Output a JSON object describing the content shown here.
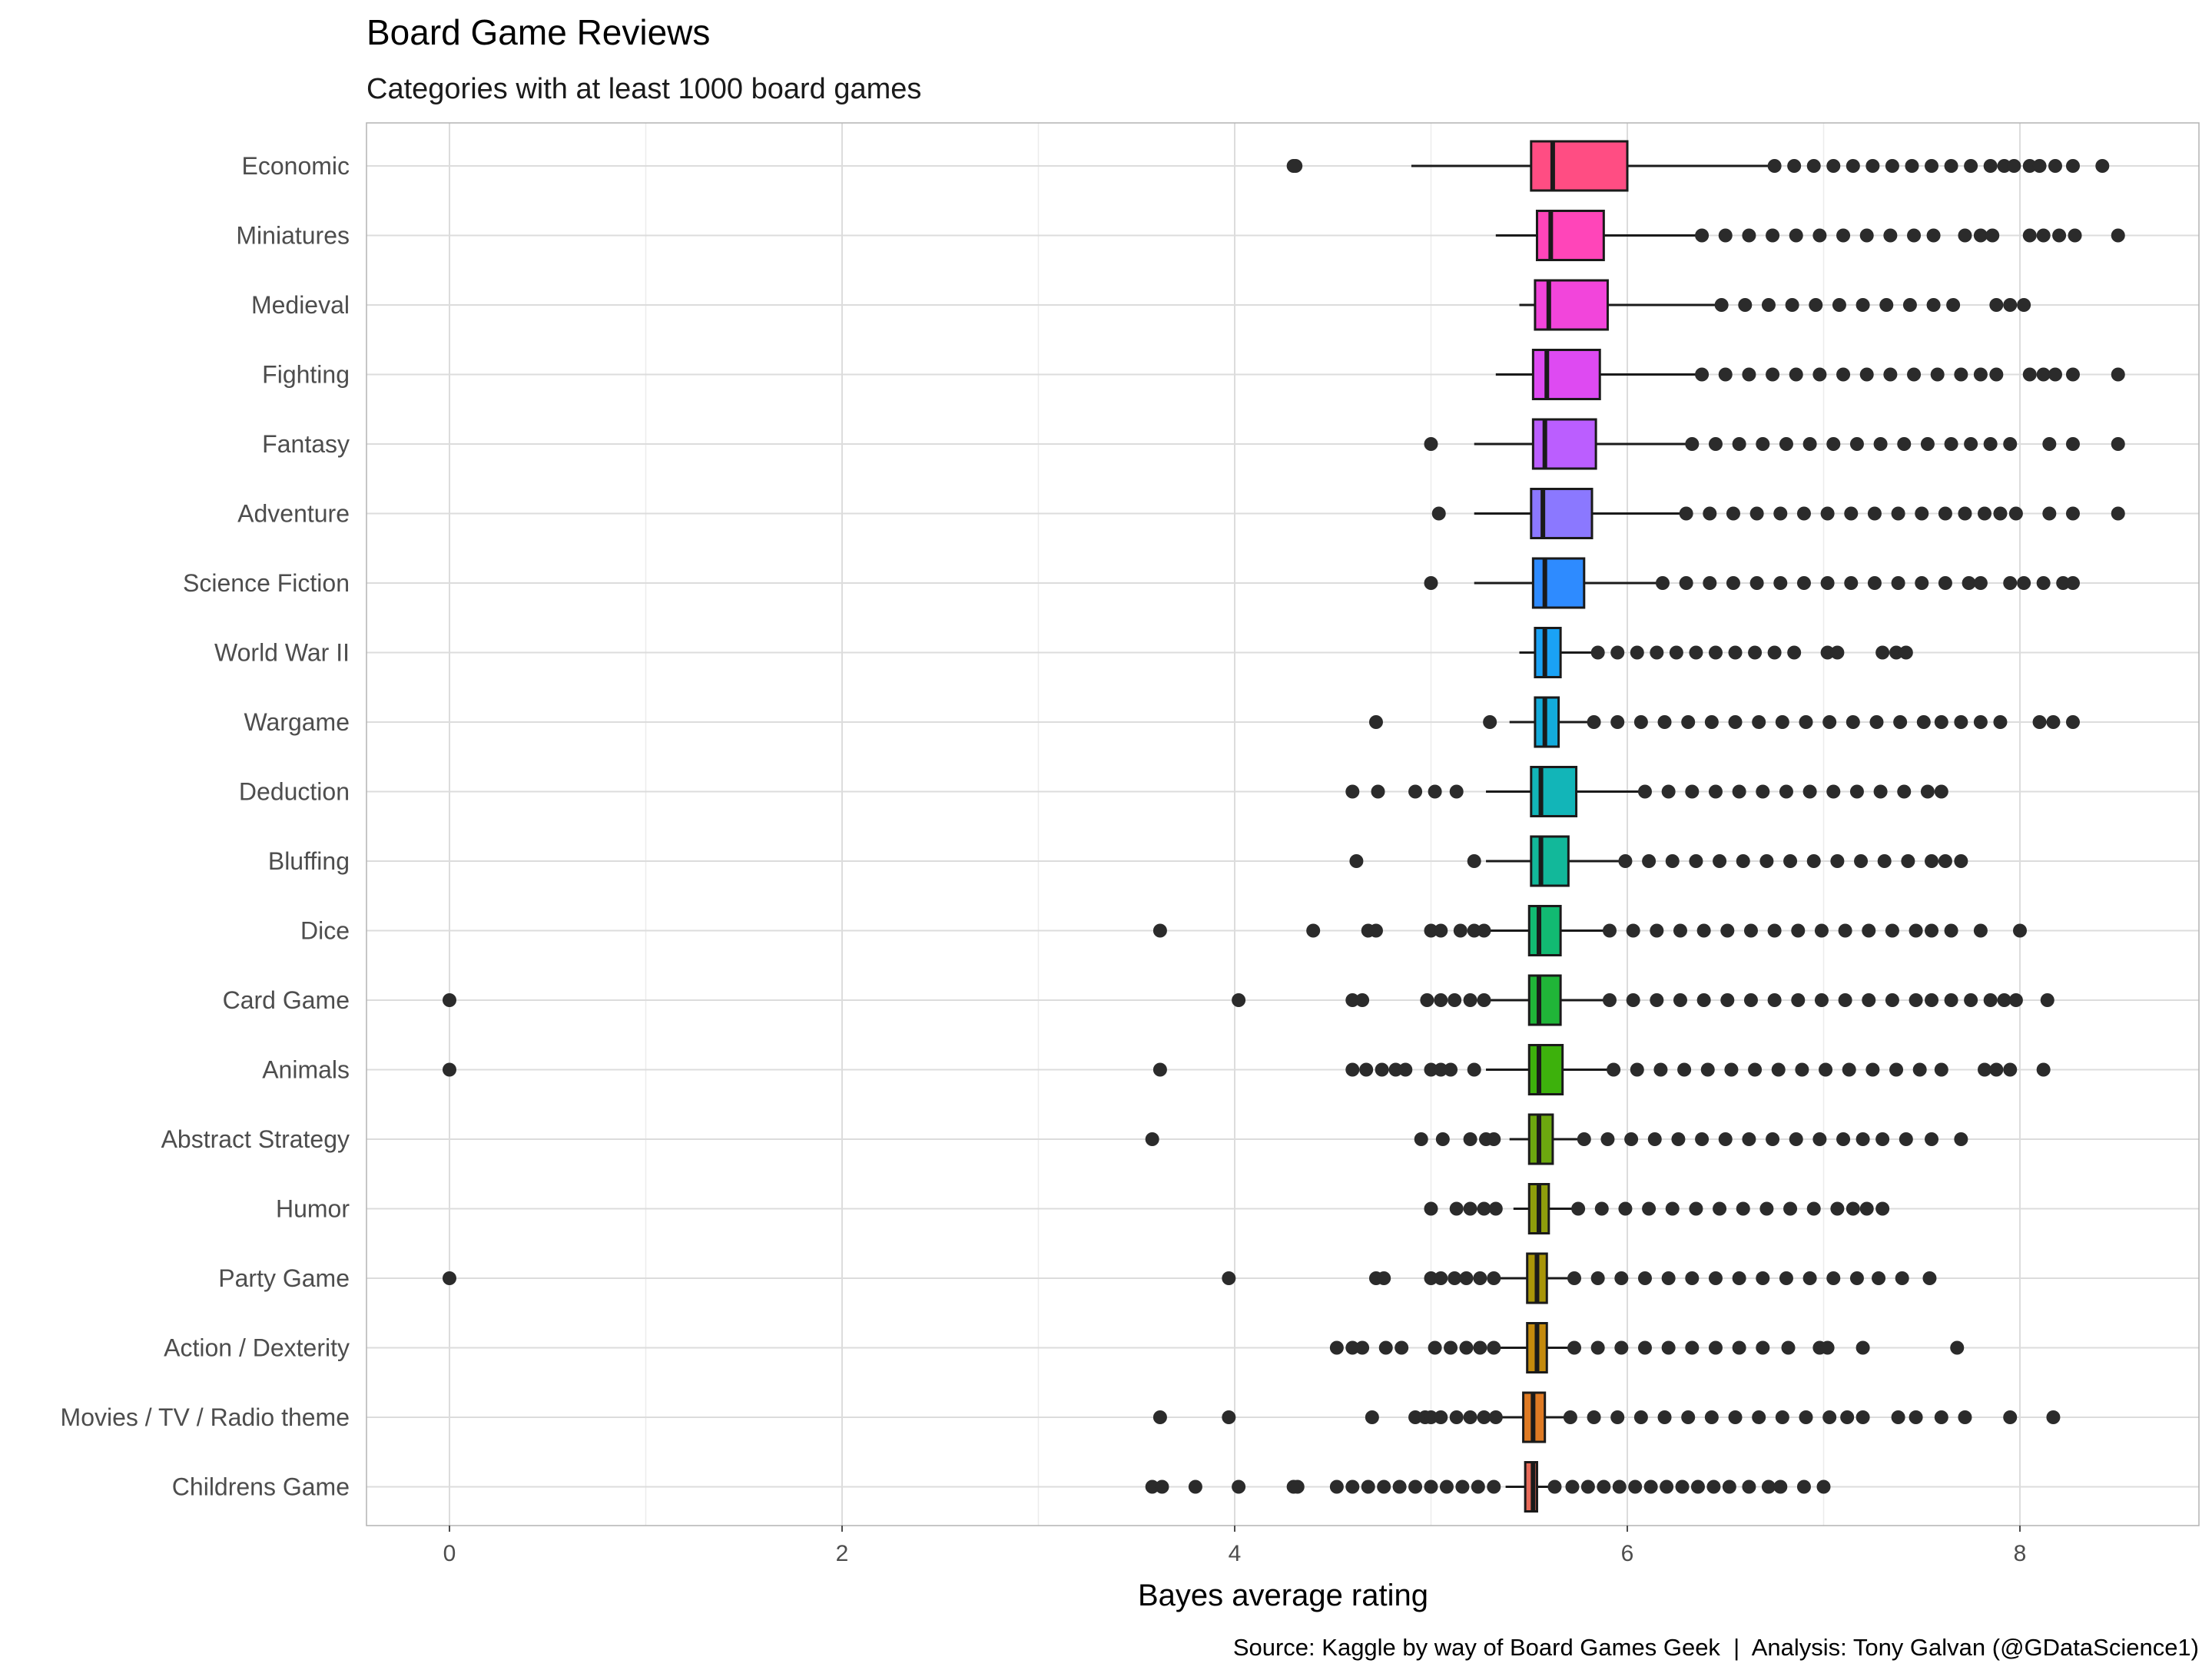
{
  "chart_data": {
    "type": "boxplot",
    "title": "Board Game Reviews",
    "subtitle": "Categories with at least 1000 board games",
    "xlabel": "Bayes average rating",
    "caption": "Source: Kaggle by way of Board Games Geek  |  Analysis: Tony Galvan (@GDataScience1)",
    "xlim": [
      -0.42,
      8.9
    ],
    "xticks": [
      0,
      2,
      4,
      6,
      8
    ],
    "grid": true,
    "categories": [
      {
        "name": "Economic",
        "color": "#FF4D83",
        "q1": 5.51,
        "median": 5.62,
        "q3": 6.0,
        "wlo": 4.9,
        "whi": 6.72,
        "outliers": [
          4.3,
          4.31,
          6.75,
          6.85,
          6.95,
          7.05,
          7.15,
          7.25,
          7.35,
          7.45,
          7.55,
          7.65,
          7.75,
          7.85,
          7.92,
          7.97,
          8.05,
          8.1,
          8.18,
          8.27,
          8.42
        ]
      },
      {
        "name": "Miniatures",
        "color": "#FF45B9",
        "q1": 5.54,
        "median": 5.61,
        "q3": 5.88,
        "wlo": 5.33,
        "whi": 6.35,
        "outliers": [
          6.38,
          6.5,
          6.62,
          6.74,
          6.86,
          6.98,
          7.1,
          7.22,
          7.34,
          7.46,
          7.56,
          7.72,
          7.8,
          7.86,
          8.05,
          8.12,
          8.2,
          8.28,
          8.5
        ]
      },
      {
        "name": "Medieval",
        "color": "#F245DB",
        "q1": 5.53,
        "median": 5.6,
        "q3": 5.9,
        "wlo": 5.45,
        "whi": 6.45,
        "outliers": [
          6.48,
          6.6,
          6.72,
          6.84,
          6.96,
          7.08,
          7.2,
          7.32,
          7.44,
          7.56,
          7.66,
          7.88,
          7.95,
          8.02
        ]
      },
      {
        "name": "Fighting",
        "color": "#DE4AF2",
        "q1": 5.52,
        "median": 5.59,
        "q3": 5.86,
        "wlo": 5.33,
        "whi": 6.35,
        "outliers": [
          6.38,
          6.5,
          6.62,
          6.74,
          6.86,
          6.98,
          7.1,
          7.22,
          7.34,
          7.46,
          7.58,
          7.7,
          7.8,
          7.88,
          8.05,
          8.12,
          8.18,
          8.27,
          8.5
        ]
      },
      {
        "name": "Fantasy",
        "color": "#BB5EFF",
        "q1": 5.52,
        "median": 5.58,
        "q3": 5.84,
        "wlo": 5.22,
        "whi": 6.3,
        "outliers": [
          5.0,
          6.33,
          6.45,
          6.57,
          6.69,
          6.81,
          6.93,
          7.05,
          7.17,
          7.29,
          7.41,
          7.53,
          7.65,
          7.75,
          7.85,
          7.95,
          8.15,
          8.27,
          8.5
        ]
      },
      {
        "name": "Adventure",
        "color": "#8B78FF",
        "q1": 5.51,
        "median": 5.57,
        "q3": 5.82,
        "wlo": 5.22,
        "whi": 6.27,
        "outliers": [
          5.04,
          6.3,
          6.42,
          6.54,
          6.66,
          6.78,
          6.9,
          7.02,
          7.14,
          7.26,
          7.38,
          7.5,
          7.62,
          7.72,
          7.82,
          7.9,
          7.98,
          8.15,
          8.27,
          8.5
        ]
      },
      {
        "name": "Science Fiction",
        "color": "#2E8BFF",
        "q1": 5.52,
        "median": 5.58,
        "q3": 5.78,
        "wlo": 5.22,
        "whi": 6.15,
        "outliers": [
          5.0,
          6.18,
          6.3,
          6.42,
          6.54,
          6.66,
          6.78,
          6.9,
          7.02,
          7.14,
          7.26,
          7.38,
          7.5,
          7.62,
          7.74,
          7.8,
          7.95,
          8.02,
          8.12,
          8.22,
          8.27
        ]
      },
      {
        "name": "World War II",
        "color": "#1AA2F5",
        "q1": 5.53,
        "median": 5.58,
        "q3": 5.66,
        "wlo": 5.45,
        "whi": 5.82,
        "outliers": [
          5.85,
          5.95,
          6.05,
          6.15,
          6.25,
          6.35,
          6.45,
          6.55,
          6.65,
          6.75,
          6.85,
          7.02,
          7.07,
          7.3,
          7.37,
          7.42
        ]
      },
      {
        "name": "Wargame",
        "color": "#13ABDB",
        "q1": 5.53,
        "median": 5.58,
        "q3": 5.65,
        "wlo": 5.4,
        "whi": 5.8,
        "outliers": [
          4.72,
          5.3,
          5.83,
          5.95,
          6.07,
          6.19,
          6.31,
          6.43,
          6.55,
          6.67,
          6.79,
          6.91,
          7.03,
          7.15,
          7.27,
          7.39,
          7.51,
          7.6,
          7.7,
          7.8,
          7.9,
          8.1,
          8.17,
          8.27
        ]
      },
      {
        "name": "Deduction",
        "color": "#12B5B8",
        "q1": 5.51,
        "median": 5.56,
        "q3": 5.74,
        "wlo": 5.28,
        "whi": 6.06,
        "outliers": [
          4.6,
          4.73,
          4.92,
          5.02,
          5.13,
          6.09,
          6.21,
          6.33,
          6.45,
          6.57,
          6.69,
          6.81,
          6.93,
          7.05,
          7.17,
          7.29,
          7.41,
          7.53,
          7.6
        ]
      },
      {
        "name": "Bluffing",
        "color": "#12B89A",
        "q1": 5.51,
        "median": 5.56,
        "q3": 5.7,
        "wlo": 5.28,
        "whi": 5.96,
        "outliers": [
          4.62,
          5.22,
          5.99,
          6.11,
          6.23,
          6.35,
          6.47,
          6.59,
          6.71,
          6.83,
          6.95,
          7.07,
          7.19,
          7.31,
          7.43,
          7.55,
          7.62,
          7.7
        ]
      },
      {
        "name": "Dice",
        "color": "#12BA72",
        "q1": 5.5,
        "median": 5.55,
        "q3": 5.66,
        "wlo": 5.28,
        "whi": 5.88,
        "outliers": [
          3.62,
          4.4,
          4.68,
          4.72,
          5.0,
          5.05,
          5.15,
          5.22,
          5.27,
          5.91,
          6.03,
          6.15,
          6.27,
          6.39,
          6.51,
          6.63,
          6.75,
          6.87,
          6.99,
          7.11,
          7.23,
          7.35,
          7.47,
          7.55,
          7.65,
          7.8,
          8.0
        ]
      },
      {
        "name": "Card Game",
        "color": "#20B538",
        "q1": 5.5,
        "median": 5.55,
        "q3": 5.66,
        "wlo": 5.28,
        "whi": 5.88,
        "outliers": [
          0.0,
          4.02,
          4.6,
          4.65,
          4.98,
          5.05,
          5.12,
          5.2,
          5.27,
          5.91,
          6.03,
          6.15,
          6.27,
          6.39,
          6.51,
          6.63,
          6.75,
          6.87,
          6.99,
          7.11,
          7.23,
          7.35,
          7.47,
          7.55,
          7.65,
          7.75,
          7.85,
          7.92,
          7.98,
          8.14
        ]
      },
      {
        "name": "Animals",
        "color": "#3DB10C",
        "q1": 5.5,
        "median": 5.55,
        "q3": 5.67,
        "wlo": 5.28,
        "whi": 5.9,
        "outliers": [
          0.0,
          3.62,
          4.6,
          4.67,
          4.75,
          4.82,
          4.87,
          5.0,
          5.05,
          5.1,
          5.22,
          5.93,
          6.05,
          6.17,
          6.29,
          6.41,
          6.53,
          6.65,
          6.77,
          6.89,
          7.01,
          7.13,
          7.25,
          7.37,
          7.49,
          7.6,
          7.82,
          7.88,
          7.95,
          8.12
        ]
      },
      {
        "name": "Abstract Strategy",
        "color": "#6CA80F",
        "q1": 5.5,
        "median": 5.55,
        "q3": 5.62,
        "wlo": 5.4,
        "whi": 5.75,
        "outliers": [
          3.58,
          4.95,
          5.06,
          5.2,
          5.28,
          5.32,
          5.78,
          5.9,
          6.02,
          6.14,
          6.26,
          6.38,
          6.5,
          6.62,
          6.74,
          6.86,
          6.98,
          7.1,
          7.2,
          7.3,
          7.42,
          7.55,
          7.7
        ]
      },
      {
        "name": "Humor",
        "color": "#8F9E0C",
        "q1": 5.5,
        "median": 5.55,
        "q3": 5.6,
        "wlo": 5.42,
        "whi": 5.72,
        "outliers": [
          5.0,
          5.13,
          5.2,
          5.27,
          5.33,
          5.75,
          5.87,
          5.99,
          6.11,
          6.23,
          6.35,
          6.47,
          6.59,
          6.71,
          6.83,
          6.95,
          7.07,
          7.15,
          7.22,
          7.3
        ]
      },
      {
        "name": "Party Game",
        "color": "#A89508",
        "q1": 5.49,
        "median": 5.54,
        "q3": 5.59,
        "wlo": 5.35,
        "whi": 5.7,
        "outliers": [
          0.0,
          3.97,
          4.72,
          4.76,
          5.0,
          5.05,
          5.12,
          5.18,
          5.25,
          5.32,
          5.73,
          5.85,
          5.97,
          6.09,
          6.21,
          6.33,
          6.45,
          6.57,
          6.69,
          6.81,
          6.93,
          7.05,
          7.17,
          7.28,
          7.4,
          7.54
        ]
      },
      {
        "name": "Action / Dexterity",
        "color": "#C48A0C",
        "q1": 5.49,
        "median": 5.54,
        "q3": 5.59,
        "wlo": 5.35,
        "whi": 5.7,
        "outliers": [
          4.52,
          4.6,
          4.65,
          4.77,
          4.85,
          5.02,
          5.1,
          5.18,
          5.25,
          5.32,
          5.73,
          5.85,
          5.97,
          6.09,
          6.21,
          6.33,
          6.45,
          6.57,
          6.69,
          6.82,
          6.98,
          7.02,
          7.2,
          7.68
        ]
      },
      {
        "name": "Movies / TV / Radio theme",
        "color": "#DE7A24",
        "q1": 5.47,
        "median": 5.52,
        "q3": 5.58,
        "wlo": 5.35,
        "whi": 5.68,
        "outliers": [
          3.62,
          3.97,
          4.7,
          4.92,
          4.97,
          5.0,
          5.05,
          5.13,
          5.2,
          5.27,
          5.33,
          5.71,
          5.83,
          5.95,
          6.07,
          6.19,
          6.31,
          6.43,
          6.55,
          6.67,
          6.79,
          6.91,
          7.03,
          7.12,
          7.2,
          7.38,
          7.47,
          7.6,
          7.72,
          7.95,
          8.17
        ]
      },
      {
        "name": "Childrens Game",
        "color": "#E86B5A",
        "q1": 5.48,
        "median": 5.52,
        "q3": 5.54,
        "wlo": 5.38,
        "whi": 5.6,
        "outliers": [
          3.58,
          3.63,
          3.8,
          4.02,
          4.3,
          4.32,
          4.52,
          4.6,
          4.68,
          4.76,
          4.84,
          4.92,
          5.0,
          5.08,
          5.16,
          5.24,
          5.32,
          5.63,
          5.72,
          5.8,
          5.88,
          5.96,
          6.04,
          6.12,
          6.2,
          6.28,
          6.36,
          6.44,
          6.52,
          6.62,
          6.72,
          6.78,
          6.9,
          7.0
        ]
      }
    ]
  }
}
